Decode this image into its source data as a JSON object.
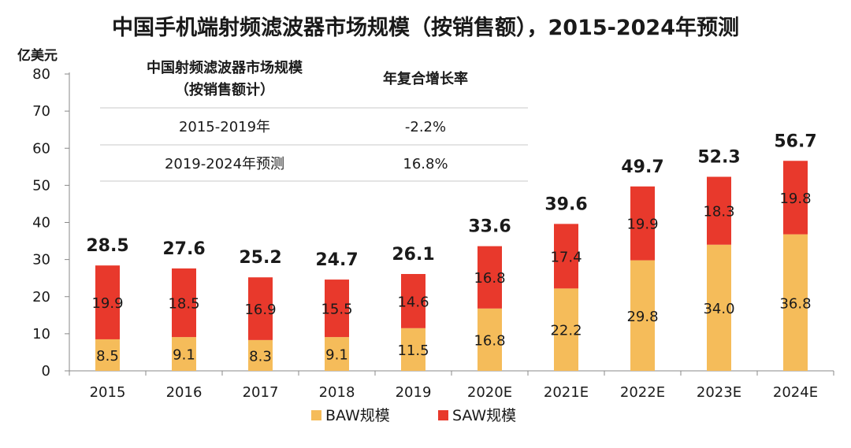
{
  "chart_data": {
    "type": "bar",
    "stacked": true,
    "title": "中国手机端射频滤波器市场规模（按销售额），2015-2024年预测",
    "ylabel": "亿美元",
    "xlabel": "",
    "ylim": [
      0,
      80
    ],
    "yticks": [
      0,
      10,
      20,
      30,
      40,
      50,
      60,
      70,
      80
    ],
    "grid": false,
    "legend_position": "bottom",
    "categories": [
      "2015",
      "2016",
      "2017",
      "2018",
      "2019",
      "2020E",
      "2021E",
      "2022E",
      "2023E",
      "2024E"
    ],
    "series": [
      {
        "name": "BAW规模",
        "color": "#F5BC5A",
        "values": [
          8.5,
          9.1,
          8.3,
          9.1,
          11.5,
          16.8,
          22.2,
          29.8,
          34.0,
          36.8
        ],
        "labels": [
          "8.5",
          "9.1",
          "8.3",
          "9.1",
          "11.5",
          "16.8",
          "22.2",
          "29.8",
          "34.0",
          "36.8"
        ]
      },
      {
        "name": "SAW规模",
        "color": "#E8392C",
        "values": [
          19.9,
          18.5,
          16.9,
          15.5,
          14.6,
          16.8,
          17.4,
          19.9,
          18.3,
          19.8
        ],
        "labels": [
          "19.9",
          "18.5",
          "16.9",
          "15.5",
          "14.6",
          "16.8",
          "17.4",
          "19.9",
          "18.3",
          "19.8"
        ]
      }
    ],
    "totals": [
      "28.5",
      "27.6",
      "25.2",
      "24.7",
      "26.1",
      "33.6",
      "39.6",
      "49.7",
      "52.3",
      "56.7"
    ],
    "inset_table": {
      "headers": [
        "中国射频滤波器市场规模\n（按销售额计）",
        "年复合增长率"
      ],
      "rows": [
        [
          "2015-2019年",
          "-2.2%"
        ],
        [
          "2019-2024年预测",
          "16.8%"
        ]
      ]
    }
  }
}
